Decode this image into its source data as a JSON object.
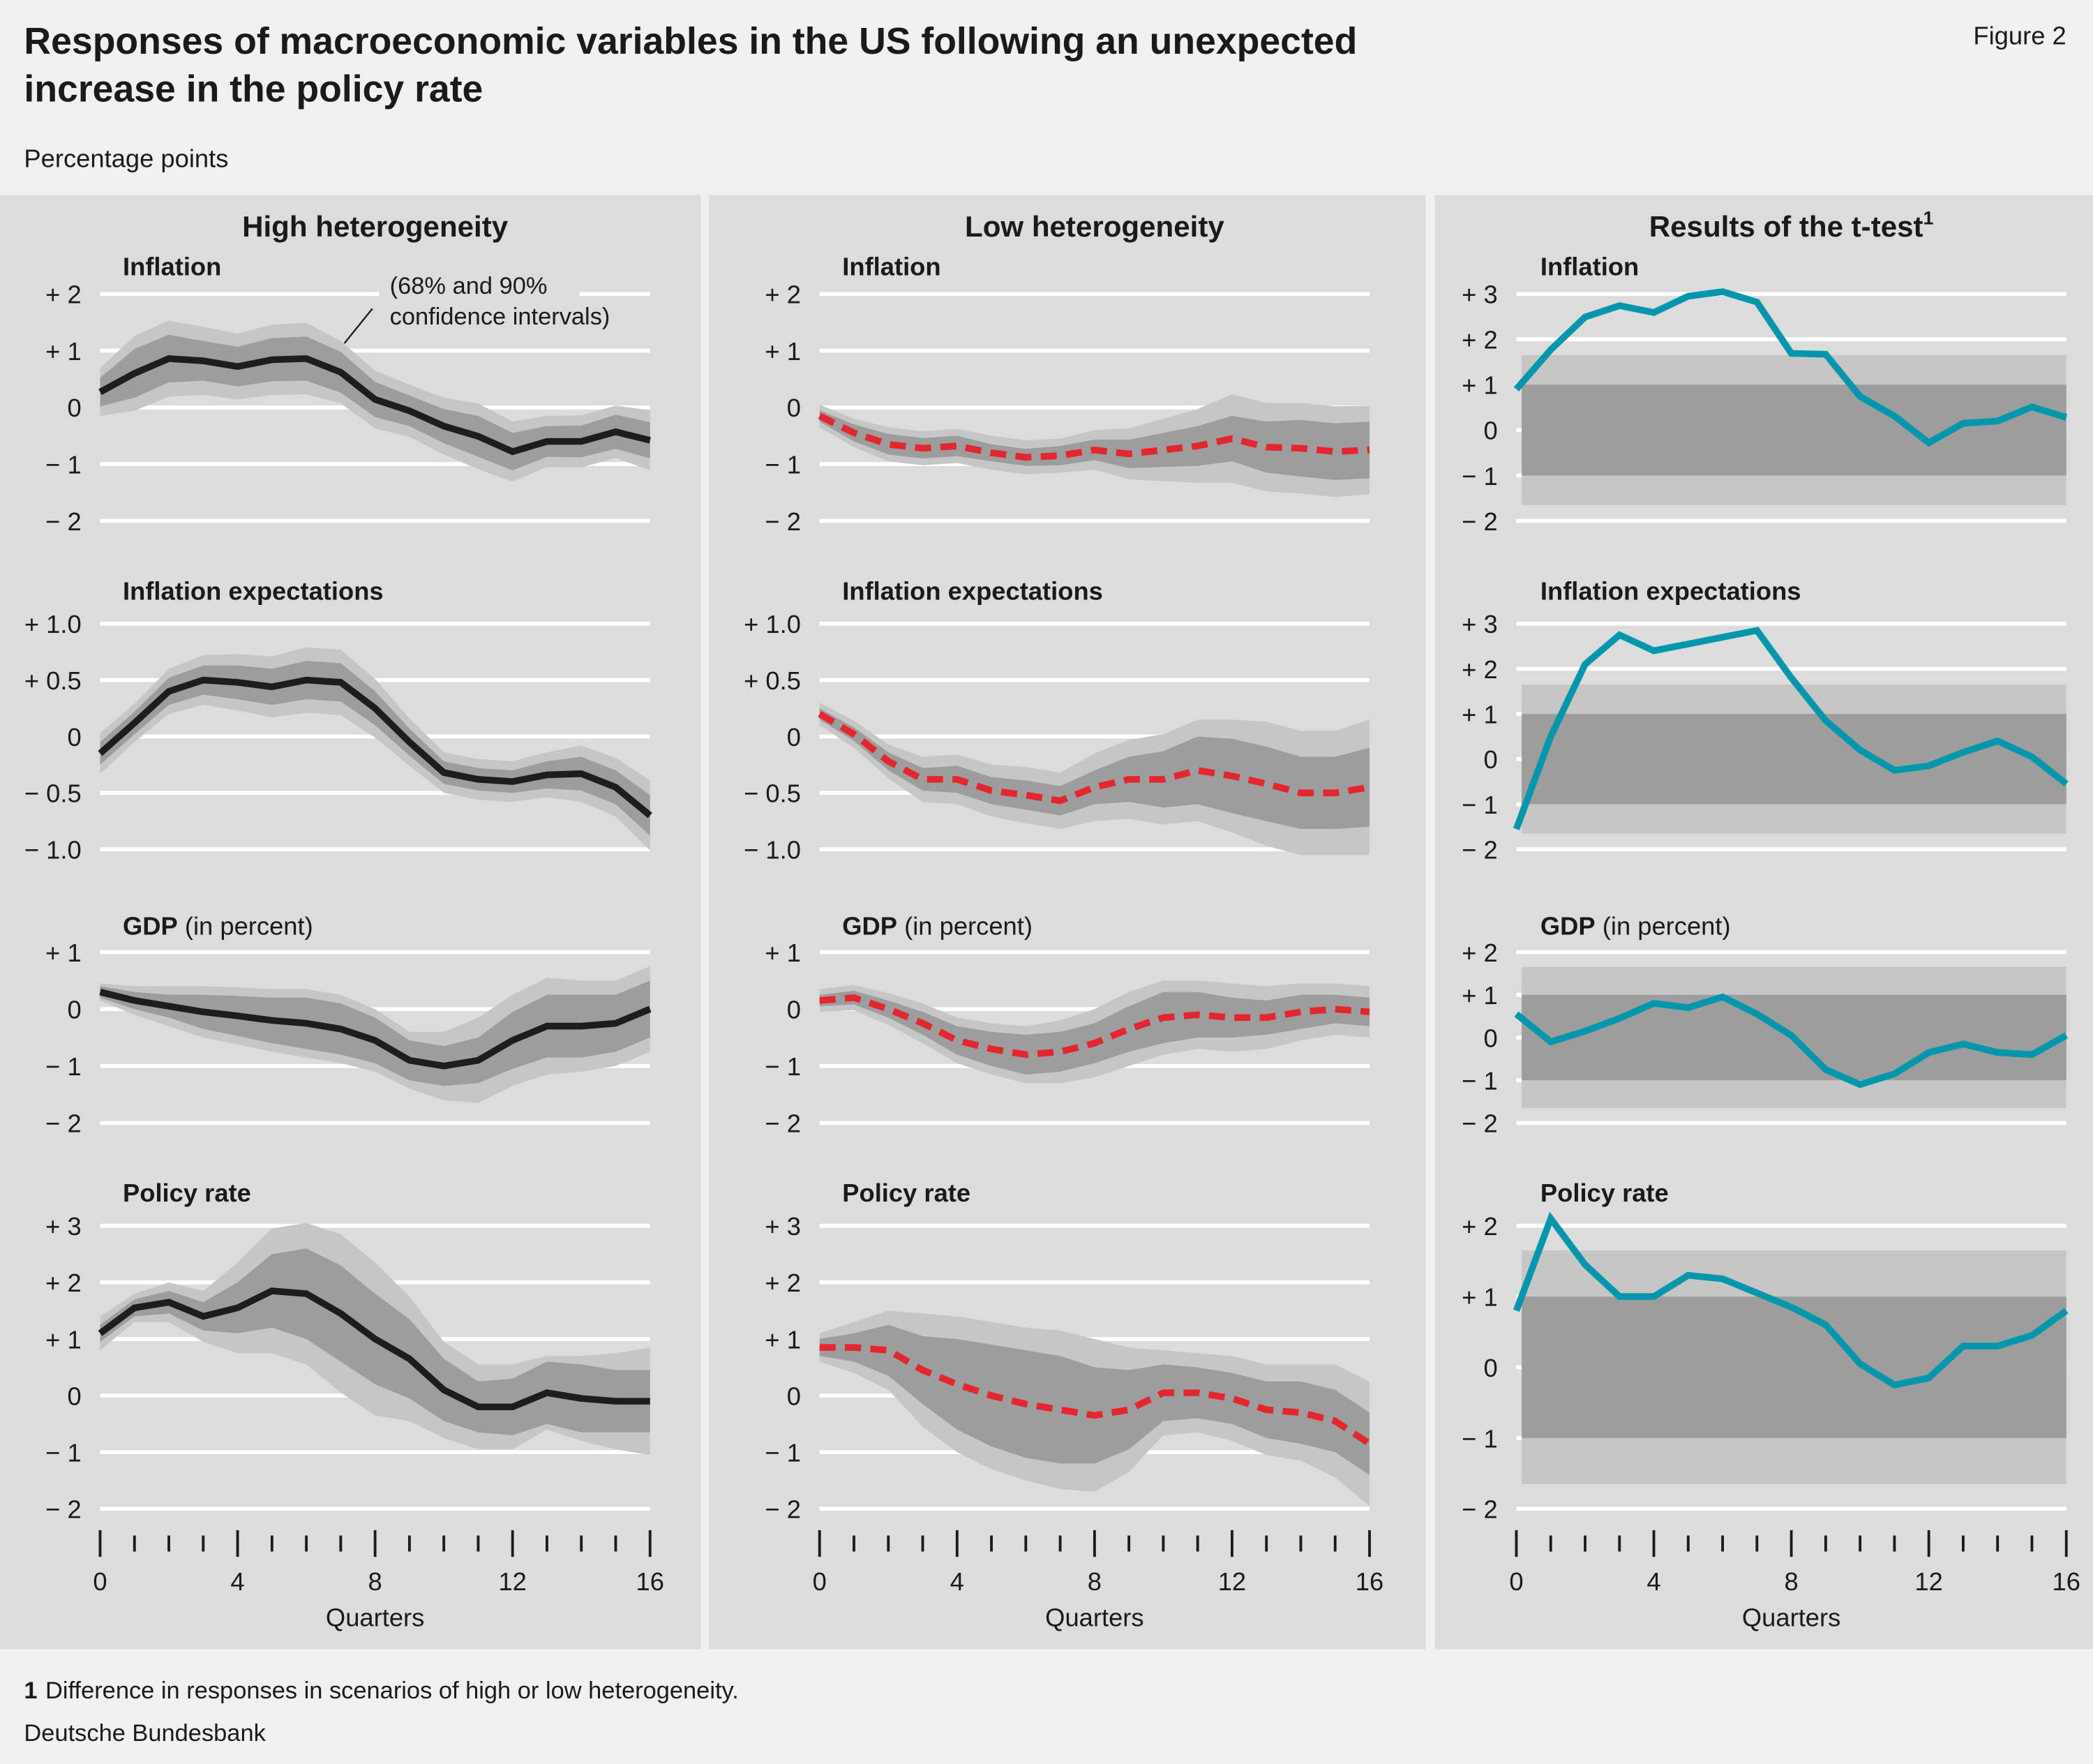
{
  "figure": {
    "title_line1": "Responses of macroeconomic variables in the US following an unexpected",
    "title_line2": "increase in the policy rate",
    "figure_number": "Figure 2",
    "units": "Percentage points",
    "footnote_marker": "1",
    "footnote": "Difference in responses in scenarios of high or low heterogeneity.",
    "source": "Deutsche Bundesbank"
  },
  "columns": [
    {
      "heading": "High heterogeneity",
      "heading_sup": ""
    },
    {
      "heading": "Low heterogeneity",
      "heading_sup": ""
    },
    {
      "heading": "Results of the t-test",
      "heading_sup": "1"
    }
  ],
  "x_axis": {
    "label": "Quarters",
    "ticks": [
      0,
      4,
      8,
      12,
      16
    ],
    "range": [
      0,
      16
    ]
  },
  "annotation": {
    "line1": "(68% and 90%",
    "line2": "confidence intervals)"
  },
  "colors": {
    "page_bg": "#f0f0f0",
    "panel_bg": "#dcdcdc",
    "grid": "#ffffff",
    "band90": "#c6c6c6",
    "band68": "#9d9d9d",
    "high_heterogeneity": "#1d1d1d",
    "low_heterogeneity": "#e4262f",
    "t_test": "#0097ad"
  },
  "chart_data": [
    {
      "type": "line",
      "column": 0,
      "row": 0,
      "title": "Inflation",
      "title_suffix": "",
      "line_style": "solid",
      "ylim": [
        -2,
        2
      ],
      "yticks": [
        {
          "v": 2,
          "t": "+ 2"
        },
        {
          "v": 1,
          "t": "+ 1"
        },
        {
          "v": 0,
          "t": "0"
        },
        {
          "v": -1,
          "t": "− 1"
        },
        {
          "v": -2,
          "t": "− 2"
        }
      ],
      "mean": [
        0.27,
        0.6,
        0.86,
        0.82,
        0.72,
        0.84,
        0.86,
        0.62,
        0.14,
        -0.06,
        -0.33,
        -0.51,
        -0.78,
        -0.6,
        -0.6,
        -0.43,
        -0.58
      ],
      "ci68_halfwidth": [
        0.25,
        0.43,
        0.42,
        0.35,
        0.35,
        0.38,
        0.39,
        0.36,
        0.31,
        0.27,
        0.3,
        0.36,
        0.33,
        0.27,
        0.28,
        0.3,
        0.32
      ],
      "ci90_halfwidth": [
        0.42,
        0.66,
        0.67,
        0.6,
        0.58,
        0.62,
        0.63,
        0.55,
        0.51,
        0.46,
        0.5,
        0.58,
        0.53,
        0.45,
        0.46,
        0.46,
        0.53
      ]
    },
    {
      "type": "line",
      "column": 0,
      "row": 1,
      "title": "Inflation expectations",
      "title_suffix": "",
      "line_style": "solid",
      "ylim": [
        -1,
        1
      ],
      "yticks": [
        {
          "v": 1,
          "t": "+ 1.0"
        },
        {
          "v": 0.5,
          "t": "+ 0.5"
        },
        {
          "v": 0,
          "t": "0"
        },
        {
          "v": -0.5,
          "t": "− 0.5"
        },
        {
          "v": -1,
          "t": "− 1.0"
        }
      ],
      "mean": [
        -0.15,
        0.12,
        0.4,
        0.5,
        0.48,
        0.44,
        0.5,
        0.48,
        0.25,
        -0.05,
        -0.32,
        -0.38,
        -0.4,
        -0.34,
        -0.33,
        -0.45,
        -0.7
      ],
      "ci68_halfwidth": [
        0.1,
        0.1,
        0.12,
        0.13,
        0.15,
        0.16,
        0.17,
        0.17,
        0.15,
        0.12,
        0.1,
        0.1,
        0.1,
        0.12,
        0.15,
        0.15,
        0.18
      ],
      "ci90_halfwidth": [
        0.18,
        0.17,
        0.2,
        0.22,
        0.25,
        0.27,
        0.29,
        0.29,
        0.26,
        0.21,
        0.18,
        0.18,
        0.18,
        0.2,
        0.25,
        0.26,
        0.31
      ]
    },
    {
      "type": "line",
      "column": 0,
      "row": 2,
      "title": "GDP",
      "title_suffix": " (in percent)",
      "line_style": "solid",
      "ylim": [
        -2,
        1
      ],
      "yticks": [
        {
          "v": 1,
          "t": "+ 1"
        },
        {
          "v": 0,
          "t": "0"
        },
        {
          "v": -1,
          "t": "− 1"
        },
        {
          "v": -2,
          "t": "− 2"
        }
      ],
      "mean": [
        0.3,
        0.15,
        0.05,
        -0.05,
        -0.12,
        -0.2,
        -0.25,
        -0.35,
        -0.55,
        -0.9,
        -1.0,
        -0.9,
        -0.55,
        -0.3,
        -0.3,
        -0.25,
        0
      ],
      "ci68_halfwidth": [
        0.1,
        0.15,
        0.2,
        0.3,
        0.35,
        0.4,
        0.45,
        0.45,
        0.4,
        0.35,
        0.35,
        0.4,
        0.5,
        0.55,
        0.55,
        0.5,
        0.5
      ],
      "ci90_halfwidth": [
        0.15,
        0.25,
        0.35,
        0.45,
        0.5,
        0.55,
        0.6,
        0.6,
        0.55,
        0.5,
        0.6,
        0.75,
        0.8,
        0.85,
        0.8,
        0.75,
        0.75
      ]
    },
    {
      "type": "line",
      "column": 0,
      "row": 3,
      "title": "Policy rate",
      "title_suffix": "",
      "line_style": "solid",
      "ylim": [
        -2,
        3
      ],
      "yticks": [
        {
          "v": 3,
          "t": "+ 3"
        },
        {
          "v": 2,
          "t": "+ 2"
        },
        {
          "v": 1,
          "t": "+ 1"
        },
        {
          "v": 0,
          "t": "0"
        },
        {
          "v": -1,
          "t": "− 1"
        },
        {
          "v": -2,
          "t": "− 2"
        }
      ],
      "mean": [
        1.1,
        1.55,
        1.65,
        1.4,
        1.55,
        1.85,
        1.8,
        1.45,
        1.0,
        0.65,
        0.1,
        -0.2,
        -0.2,
        0.05,
        -0.05,
        -0.1,
        -0.1
      ],
      "ci68_halfwidth": [
        0.15,
        0.15,
        0.2,
        0.25,
        0.45,
        0.65,
        0.8,
        0.85,
        0.8,
        0.7,
        0.55,
        0.45,
        0.5,
        0.55,
        0.6,
        0.55,
        0.55
      ],
      "ci90_halfwidth": [
        0.3,
        0.25,
        0.35,
        0.45,
        0.8,
        1.1,
        1.25,
        1.4,
        1.35,
        1.1,
        0.85,
        0.75,
        0.75,
        0.65,
        0.75,
        0.85,
        0.95
      ]
    },
    {
      "type": "line",
      "column": 1,
      "row": 0,
      "title": "Inflation",
      "title_suffix": "",
      "line_style": "dashed",
      "ylim": [
        -2,
        2
      ],
      "yticks": [
        {
          "v": 2,
          "t": "+ 2"
        },
        {
          "v": 1,
          "t": "+ 1"
        },
        {
          "v": 0,
          "t": "0"
        },
        {
          "v": -1,
          "t": "− 1"
        },
        {
          "v": -2,
          "t": "− 2"
        }
      ],
      "mean": [
        -0.15,
        -0.45,
        -0.65,
        -0.72,
        -0.68,
        -0.8,
        -0.88,
        -0.85,
        -0.75,
        -0.82,
        -0.75,
        -0.68,
        -0.55,
        -0.7,
        -0.72,
        -0.78,
        -0.75
      ],
      "ci68_halfwidth": [
        0.1,
        0.15,
        0.18,
        0.18,
        0.18,
        0.15,
        0.15,
        0.17,
        0.18,
        0.25,
        0.3,
        0.35,
        0.4,
        0.45,
        0.5,
        0.5,
        0.5
      ],
      "ci90_halfwidth": [
        0.2,
        0.25,
        0.3,
        0.3,
        0.3,
        0.3,
        0.3,
        0.3,
        0.35,
        0.45,
        0.55,
        0.65,
        0.78,
        0.78,
        0.8,
        0.8,
        0.78
      ]
    },
    {
      "type": "line",
      "column": 1,
      "row": 1,
      "title": "Inflation expectations",
      "title_suffix": "",
      "line_style": "dashed",
      "ylim": [
        -1,
        1
      ],
      "yticks": [
        {
          "v": 1,
          "t": "+ 1.0"
        },
        {
          "v": 0.5,
          "t": "+ 0.5"
        },
        {
          "v": 0,
          "t": "0"
        },
        {
          "v": -0.5,
          "t": "− 0.5"
        },
        {
          "v": -1,
          "t": "− 1.0"
        }
      ],
      "mean": [
        0.2,
        0.02,
        -0.22,
        -0.38,
        -0.38,
        -0.48,
        -0.52,
        -0.57,
        -0.45,
        -0.38,
        -0.38,
        -0.3,
        -0.35,
        -0.42,
        -0.5,
        -0.5,
        -0.45
      ],
      "ci68_halfwidth": [
        0.05,
        0.06,
        0.08,
        0.1,
        0.12,
        0.12,
        0.13,
        0.13,
        0.15,
        0.2,
        0.25,
        0.3,
        0.33,
        0.33,
        0.32,
        0.32,
        0.35
      ],
      "ci90_halfwidth": [
        0.1,
        0.12,
        0.15,
        0.2,
        0.22,
        0.23,
        0.25,
        0.25,
        0.3,
        0.35,
        0.4,
        0.45,
        0.5,
        0.55,
        0.55,
        0.55,
        0.6
      ]
    },
    {
      "type": "line",
      "column": 1,
      "row": 2,
      "title": "GDP",
      "title_suffix": " (in percent)",
      "line_style": "dashed",
      "ylim": [
        -2,
        1
      ],
      "yticks": [
        {
          "v": 1,
          "t": "+ 1"
        },
        {
          "v": 0,
          "t": "0"
        },
        {
          "v": -1,
          "t": "− 1"
        },
        {
          "v": -2,
          "t": "− 2"
        }
      ],
      "mean": [
        0.15,
        0.2,
        0,
        -0.25,
        -0.55,
        -0.7,
        -0.8,
        -0.75,
        -0.6,
        -0.35,
        -0.15,
        -0.1,
        -0.15,
        -0.15,
        -0.05,
        0,
        -0.05
      ],
      "ci68_halfwidth": [
        0.1,
        0.12,
        0.15,
        0.2,
        0.25,
        0.3,
        0.35,
        0.35,
        0.35,
        0.4,
        0.45,
        0.4,
        0.35,
        0.3,
        0.3,
        0.25,
        0.25
      ],
      "ci90_halfwidth": [
        0.2,
        0.22,
        0.28,
        0.35,
        0.4,
        0.45,
        0.5,
        0.55,
        0.6,
        0.65,
        0.65,
        0.6,
        0.6,
        0.55,
        0.5,
        0.45,
        0.45
      ]
    },
    {
      "type": "line",
      "column": 1,
      "row": 3,
      "title": "Policy rate",
      "title_suffix": "",
      "line_style": "dashed",
      "ylim": [
        -2,
        3
      ],
      "yticks": [
        {
          "v": 3,
          "t": "+ 3"
        },
        {
          "v": 2,
          "t": "+ 2"
        },
        {
          "v": 1,
          "t": "+ 1"
        },
        {
          "v": 0,
          "t": "0"
        },
        {
          "v": -1,
          "t": "− 1"
        },
        {
          "v": -2,
          "t": "− 2"
        }
      ],
      "mean": [
        0.85,
        0.85,
        0.8,
        0.45,
        0.2,
        0,
        -0.15,
        -0.25,
        -0.35,
        -0.25,
        0.05,
        0.05,
        -0.05,
        -0.25,
        -0.3,
        -0.45,
        -0.85
      ],
      "ci68_halfwidth": [
        0.15,
        0.25,
        0.45,
        0.6,
        0.8,
        0.9,
        0.95,
        0.95,
        0.85,
        0.7,
        0.5,
        0.45,
        0.45,
        0.5,
        0.55,
        0.55,
        0.55
      ],
      "ci90_halfwidth": [
        0.25,
        0.45,
        0.7,
        1.0,
        1.2,
        1.3,
        1.35,
        1.4,
        1.35,
        1.1,
        0.75,
        0.7,
        0.75,
        0.8,
        0.85,
        1.0,
        1.1
      ]
    },
    {
      "type": "line",
      "column": 2,
      "row": 0,
      "title": "Inflation",
      "title_suffix": "",
      "line_style": "solid",
      "ylim": [
        -2,
        3
      ],
      "yticks": [
        {
          "v": 3,
          "t": "+ 3"
        },
        {
          "v": 2,
          "t": "+ 2"
        },
        {
          "v": 1,
          "t": "+ 1"
        },
        {
          "v": 0,
          "t": "0"
        },
        {
          "v": -1,
          "t": "− 1"
        },
        {
          "v": -2,
          "t": "− 2"
        }
      ],
      "mean": [
        0.9,
        1.77,
        2.49,
        2.74,
        2.59,
        2.95,
        3.05,
        2.82,
        1.69,
        1.67,
        0.74,
        0.31,
        -0.28,
        0.15,
        0.2,
        0.51,
        0.28
      ],
      "band_inner": 1,
      "band_outer": 1.65
    },
    {
      "type": "line",
      "column": 2,
      "row": 1,
      "title": "Inflation expectations",
      "title_suffix": "",
      "line_style": "solid",
      "ylim": [
        -2,
        3
      ],
      "yticks": [
        {
          "v": 3,
          "t": "+ 3"
        },
        {
          "v": 2,
          "t": "+ 2"
        },
        {
          "v": 1,
          "t": "+ 1"
        },
        {
          "v": 0,
          "t": "0"
        },
        {
          "v": -1,
          "t": "− 1"
        },
        {
          "v": -2,
          "t": "− 2"
        }
      ],
      "mean": [
        -1.55,
        0.5,
        2.1,
        2.75,
        2.4,
        2.55,
        2.7,
        2.85,
        1.8,
        0.85,
        0.2,
        -0.25,
        -0.15,
        0.15,
        0.4,
        0.05,
        -0.55
      ],
      "band_inner": 1,
      "band_outer": 1.65
    },
    {
      "type": "line",
      "column": 2,
      "row": 2,
      "title": "GDP",
      "title_suffix": " (in percent)",
      "line_style": "solid",
      "ylim": [
        -2,
        2
      ],
      "yticks": [
        {
          "v": 2,
          "t": "+ 2"
        },
        {
          "v": 1,
          "t": "+ 1"
        },
        {
          "v": 0,
          "t": "0"
        },
        {
          "v": -1,
          "t": "− 1"
        },
        {
          "v": -2,
          "t": "− 2"
        }
      ],
      "mean": [
        0.55,
        -0.1,
        0.15,
        0.45,
        0.8,
        0.7,
        0.95,
        0.55,
        0.05,
        -0.75,
        -1.1,
        -0.85,
        -0.35,
        -0.15,
        -0.35,
        -0.4,
        0.05
      ],
      "band_inner": 1,
      "band_outer": 1.65
    },
    {
      "type": "line",
      "column": 2,
      "row": 3,
      "title": "Policy rate",
      "title_suffix": "",
      "line_style": "solid",
      "ylim": [
        -2,
        2
      ],
      "yticks": [
        {
          "v": 2,
          "t": "+ 2"
        },
        {
          "v": 1,
          "t": "+ 1"
        },
        {
          "v": 0,
          "t": "0"
        },
        {
          "v": -1,
          "t": "− 1"
        },
        {
          "v": -2,
          "t": "− 2"
        }
      ],
      "mean": [
        0.8,
        2.1,
        1.45,
        1.0,
        1.0,
        1.3,
        1.25,
        1.05,
        0.85,
        0.6,
        0.05,
        -0.25,
        -0.15,
        0.3,
        0.3,
        0.45,
        0.8
      ],
      "band_inner": 1,
      "band_outer": 1.65
    }
  ]
}
